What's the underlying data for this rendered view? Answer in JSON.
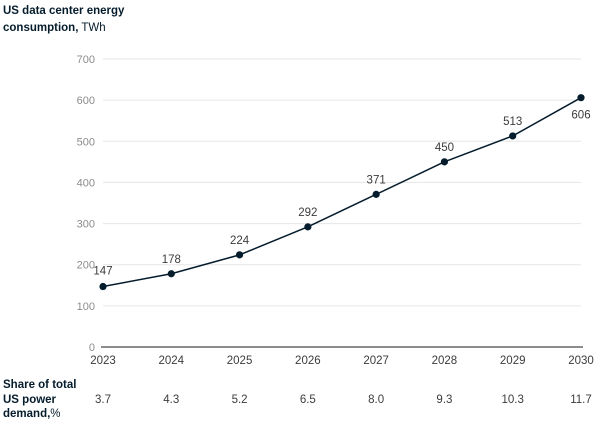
{
  "title": {
    "bold": "US data center energy consumption,",
    "unit": "TWh"
  },
  "share_row": {
    "label_bold": "Share of total US power demand,",
    "label_unit": "%",
    "values": [
      "3.7",
      "4.3",
      "5.2",
      "6.5",
      "8.0",
      "9.3",
      "10.3",
      "11.7"
    ]
  },
  "chart_data": {
    "type": "line",
    "title": "US data center energy consumption, TWh",
    "xlabel": "",
    "ylabel": "",
    "x": [
      "2023",
      "2024",
      "2025",
      "2026",
      "2027",
      "2028",
      "2029",
      "2030"
    ],
    "series": [
      {
        "values": [
          147,
          178,
          224,
          292,
          371,
          450,
          513,
          606
        ],
        "labels": [
          "147",
          "178",
          "224",
          "292",
          "371",
          "450",
          "513",
          "606"
        ]
      }
    ],
    "ylim": [
      0,
      700
    ],
    "yticks": [
      "0",
      "100",
      "200",
      "300",
      "400",
      "500",
      "600",
      "700"
    ],
    "grid": true,
    "colors": {
      "line": "#051c2c",
      "point": "#051c2c",
      "grid": "#e6e6e6",
      "tick_text": "#8c8c8c",
      "label_text": "#3c3c3c",
      "axis": "#1a1a1a"
    }
  }
}
